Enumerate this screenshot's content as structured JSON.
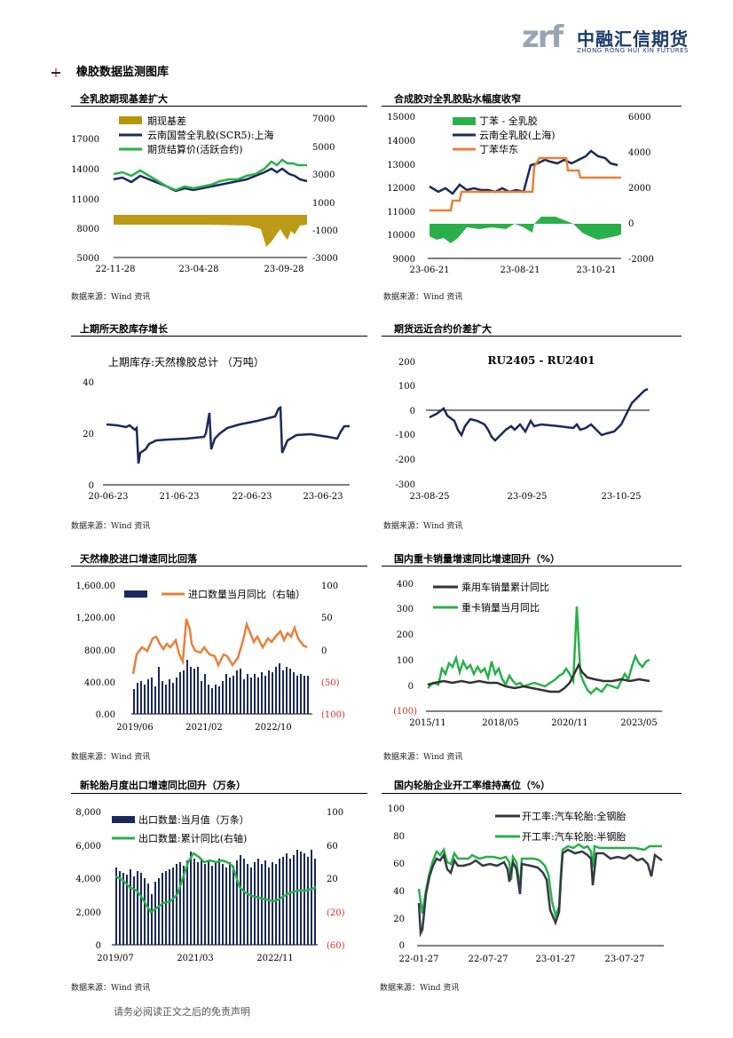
{
  "header": {
    "logo_mark": "zrf",
    "logo_cn": "中融汇信期货",
    "logo_en": "ZHONG RONG HUI XIN FUTURES"
  },
  "section": {
    "title": "橡胶数据监测图库"
  },
  "footer": {
    "disclaimer": "请务必阅读正文之后的免责声明"
  },
  "charts": [
    {
      "title": "全乳胶期现基差扩大",
      "source": "数据来源：Wind 资讯",
      "legend": [
        "期现基差",
        "云南国营全乳胶(SCR5):上海",
        "期货结算价(活跃合约)"
      ],
      "left_ticks": [
        "17000",
        "14000",
        "11000",
        "8000",
        "5000"
      ],
      "right_ticks": [
        "7000",
        "5000",
        "3000",
        "1000",
        "-1000",
        "-3000"
      ],
      "x_ticks": [
        "22-11-28",
        "23-04-28",
        "23-09-28"
      ],
      "colors": {
        "basis": "#b8940a",
        "spot": "#1b2a5c",
        "fut": "#2ab04a"
      }
    },
    {
      "title": "合成胶对全乳胶贴水幅度收窄",
      "source": "数据来源：Wind 资讯",
      "legend": [
        "丁苯 - 全乳胶",
        "云南全乳胶(上海)",
        "丁苯华东"
      ],
      "left_ticks": [
        "15000",
        "14000",
        "13000",
        "12000",
        "11000",
        "10000",
        "9000"
      ],
      "right_ticks": [
        "6000",
        "4000",
        "2000",
        "0",
        "-2000"
      ],
      "x_ticks": [
        "23-06-21",
        "23-08-21",
        "23-10-21"
      ],
      "colors": {
        "diff": "#2ab04a",
        "spot": "#1b2a5c",
        "sbr": "#e8803a"
      }
    },
    {
      "title": "上期所天胶库存增长",
      "source": "数据来源：Wind 资讯",
      "legend": [
        "上期库存:天然橡胶总计  （万吨）"
      ],
      "left_ticks": [
        "40",
        "20",
        "0"
      ],
      "x_ticks": [
        "20-06-23",
        "21-06-23",
        "22-06-23",
        "23-06-23"
      ],
      "colors": {
        "line": "#1b2a5c"
      }
    },
    {
      "title": "期货远近合约价差扩大",
      "source": "数据来源：Wind 资讯",
      "legend": [
        "RU2405 - RU2401"
      ],
      "left_ticks": [
        "200",
        "100",
        "0",
        "-100",
        "-200",
        "-300"
      ],
      "x_ticks": [
        "23-08-25",
        "23-09-25",
        "23-10-25"
      ],
      "colors": {
        "line": "#1b2a5c"
      }
    },
    {
      "title": "天然橡胶进口增速同比回落",
      "source": "数据来源：Wind 资讯",
      "legend": [
        "进口数量当月同比（右轴）"
      ],
      "left_ticks": [
        "1,600.00",
        "1,200.00",
        "800.00",
        "400.00",
        "0.00"
      ],
      "right_ticks": [
        "100",
        "50",
        "0",
        "(50)",
        "(100)"
      ],
      "x_ticks": [
        "2019/06",
        "2021/02",
        "2022/10"
      ],
      "colors": {
        "bar": "#1b2a5c",
        "line": "#e8803a",
        "neg": "#d9302b"
      }
    },
    {
      "title": "国内重卡销量增速同比增速回升（%）",
      "source": "数据来源：Wind 资讯",
      "legend": [
        "乘用车销量累计同比",
        "重卡销量当月同比"
      ],
      "left_ticks": [
        "400",
        "300",
        "200",
        "100",
        "0",
        "(100)"
      ],
      "x_ticks": [
        "2015/11",
        "2018/05",
        "2020/11",
        "2023/05"
      ],
      "colors": {
        "car": "#333333",
        "truck": "#2ab04a",
        "neg": "#d9302b"
      }
    },
    {
      "title": "新轮胎月度出口增速同比回升（万条）",
      "source": "数据来源：Wind 资讯",
      "legend": [
        "出口数量:当月值（万条）",
        "出口数量:累计同比(右轴)"
      ],
      "left_ticks": [
        "8,000",
        "6,000",
        "4,000",
        "2,000",
        "0"
      ],
      "right_ticks": [
        "100",
        "60",
        "20",
        "(20)",
        "(60)"
      ],
      "x_ticks": [
        "2019/07",
        "2021/03",
        "2022/11"
      ],
      "colors": {
        "bar": "#1b2a5c",
        "line": "#2ab04a",
        "neg": "#d9302b"
      }
    },
    {
      "title": "国内轮胎企业开工率维持高位（%）",
      "source": "数据来源：Wind 资讯",
      "legend": [
        "开工率:汽车轮胎:全钢胎",
        "开工率:汽车轮胎:半钢胎"
      ],
      "left_ticks": [
        "100",
        "80",
        "60",
        "40",
        "20",
        "0"
      ],
      "x_ticks": [
        "22-01-27",
        "22-07-27",
        "23-01-27",
        "23-07-27"
      ],
      "colors": {
        "all": "#333a44",
        "semi": "#2ab04a"
      }
    }
  ]
}
